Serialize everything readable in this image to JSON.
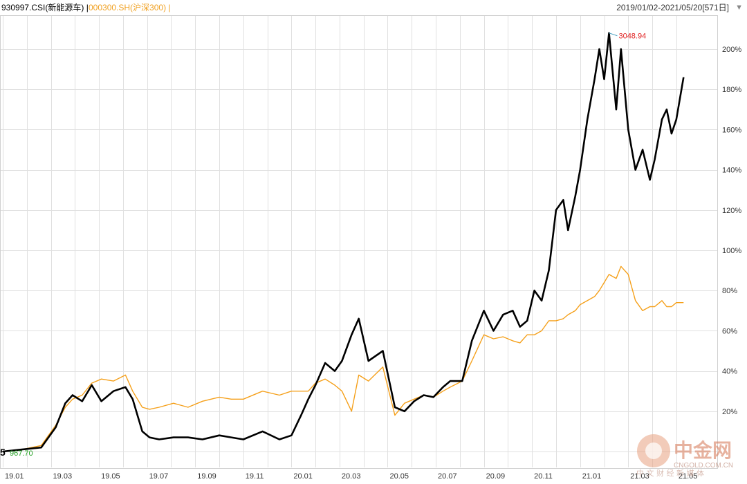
{
  "header": {
    "series_a_label": "930997.CSI(新能源车)",
    "series_b_label": "000300.SH(沪深300)",
    "separator": "|",
    "date_range": "2019/01/02-2021/05/20[571日]",
    "dropdown_icon": "triangle-down-icon"
  },
  "colors": {
    "series_a": "#000000",
    "series_b": "#f5a01a",
    "grid": "#e0e0e0",
    "max_label": "#e02020",
    "min_label": "#20a020"
  },
  "annotations": {
    "max_value": "3048.94",
    "min_value": "967.70",
    "left_marker": "5"
  },
  "watermark": {
    "name_cn": "中金网",
    "domain": "CNGOLD.COM.CN",
    "slogan": "中 文 财 经 新 媒 体"
  },
  "chart_data": {
    "type": "line",
    "x_tick_labels": [
      "19.01",
      "19.03",
      "19.05",
      "19.07",
      "19.09",
      "19.11",
      "20.01",
      "20.03",
      "20.05",
      "20.07",
      "20.09",
      "20.11",
      "21.01",
      "21.03",
      "21.05"
    ],
    "y_tick_labels": [
      "20%",
      "40%",
      "60%",
      "80%",
      "100%",
      "120%",
      "140%",
      "160%",
      "180%",
      "200%"
    ],
    "y_tick_values": [
      20,
      40,
      60,
      80,
      100,
      120,
      140,
      160,
      180,
      200
    ],
    "ylim": [
      -19,
      215
    ],
    "xlim": [
      0,
      28.6
    ],
    "grid": true,
    "series": [
      {
        "name": "930997.CSI(新能源车)",
        "x": [
          0,
          0.8,
          1.6,
          2.2,
          2.6,
          2.9,
          3.3,
          3.7,
          4.1,
          4.6,
          5.1,
          5.4,
          5.8,
          6.1,
          6.5,
          7.1,
          7.7,
          8.3,
          9.0,
          9.5,
          10.0,
          10.8,
          11.5,
          12.0,
          12.4,
          12.7,
          13.0,
          13.4,
          13.8,
          14.1,
          14.5,
          14.8,
          15.2,
          15.8,
          16.3,
          16.7,
          17.1,
          17.5,
          17.9,
          18.3,
          18.6,
          19.1,
          19.5,
          20.0,
          20.4,
          20.8,
          21.2,
          21.5,
          21.8,
          22.1,
          22.4,
          22.7,
          23.0,
          23.3,
          23.5,
          23.8,
          24.0,
          24.3,
          24.6,
          24.8,
          25.0,
          25.2,
          25.5,
          25.7,
          26.0,
          26.3,
          26.6,
          26.9,
          27.1,
          27.4,
          27.6,
          27.8,
          28.0,
          28.3
        ],
        "values": [
          0,
          1,
          2,
          12,
          24,
          28,
          25,
          33,
          25,
          30,
          32,
          26,
          10,
          7,
          6,
          7,
          7,
          6,
          8,
          7,
          6,
          10,
          6,
          8,
          18,
          26,
          33,
          44,
          40,
          45,
          58,
          66,
          45,
          50,
          22,
          20,
          25,
          28,
          27,
          32,
          35,
          35,
          55,
          70,
          60,
          68,
          70,
          62,
          65,
          80,
          75,
          90,
          120,
          125,
          110,
          127,
          140,
          165,
          185,
          200,
          185,
          208,
          170,
          200,
          160,
          140,
          150,
          135,
          145,
          165,
          170,
          158,
          165,
          186
        ]
      },
      {
        "name": "000300.SH(沪深300)",
        "x": [
          0,
          0.8,
          1.6,
          2.2,
          2.6,
          2.9,
          3.3,
          3.7,
          4.1,
          4.6,
          5.1,
          5.4,
          5.8,
          6.1,
          6.5,
          7.1,
          7.7,
          8.3,
          9.0,
          9.5,
          10.0,
          10.8,
          11.5,
          12.0,
          12.4,
          12.7,
          13.0,
          13.4,
          13.8,
          14.1,
          14.5,
          14.8,
          15.2,
          15.8,
          16.3,
          16.7,
          17.1,
          17.5,
          17.9,
          18.3,
          18.6,
          19.1,
          19.5,
          20.0,
          20.4,
          20.8,
          21.2,
          21.5,
          21.8,
          22.1,
          22.4,
          22.7,
          23.0,
          23.3,
          23.5,
          23.8,
          24.0,
          24.3,
          24.6,
          24.8,
          25.0,
          25.2,
          25.5,
          25.7,
          26.0,
          26.3,
          26.6,
          26.9,
          27.1,
          27.4,
          27.6,
          27.8,
          28.0,
          28.3
        ],
        "values": [
          0,
          1,
          3,
          13,
          22,
          26,
          28,
          34,
          36,
          35,
          38,
          30,
          22,
          21,
          22,
          24,
          22,
          25,
          27,
          26,
          26,
          30,
          28,
          30,
          30,
          30,
          34,
          36,
          33,
          30,
          20,
          38,
          35,
          42,
          18,
          24,
          26,
          28,
          27,
          30,
          32,
          35,
          45,
          58,
          56,
          57,
          55,
          54,
          58,
          58,
          60,
          65,
          65,
          66,
          68,
          70,
          73,
          75,
          77,
          80,
          84,
          88,
          86,
          92,
          88,
          75,
          70,
          72,
          72,
          75,
          72,
          72,
          74,
          74
        ]
      }
    ]
  }
}
